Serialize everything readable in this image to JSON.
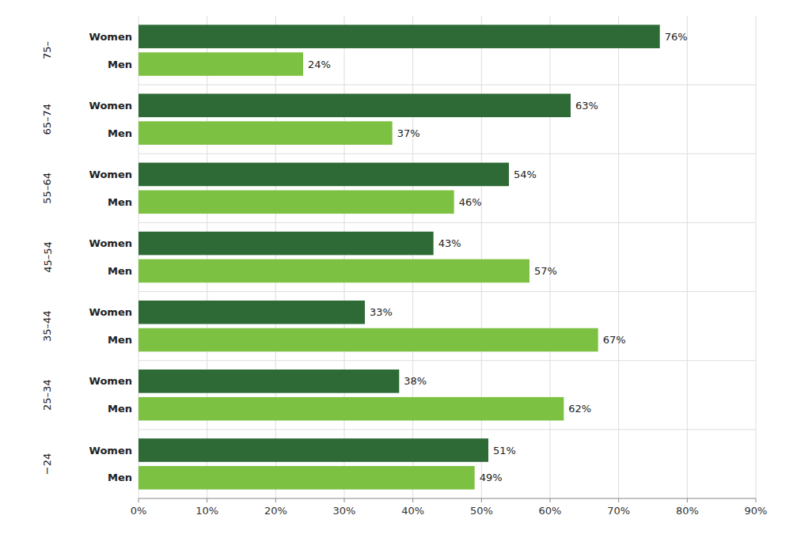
{
  "chart_data": {
    "type": "bar",
    "orientation": "horizontal",
    "categories": [
      "−24",
      "25–34",
      "35–44",
      "45–54",
      "55–64",
      "65–74",
      "75–"
    ],
    "series": [
      {
        "name": "Women",
        "color": "#2d6a35",
        "values": [
          51,
          38,
          33,
          43,
          54,
          63,
          76
        ],
        "value_labels": [
          "51%",
          "38%",
          "33%",
          "43%",
          "54%",
          "63%",
          "76%"
        ]
      },
      {
        "name": "Men",
        "color": "#7dc143",
        "values": [
          49,
          62,
          67,
          57,
          46,
          37,
          24
        ],
        "value_labels": [
          "49%",
          "62%",
          "67%",
          "57%",
          "46%",
          "37%",
          "24%"
        ]
      }
    ],
    "xlim": [
      0,
      90
    ],
    "xticks": [
      {
        "value": 0,
        "label": "0%"
      },
      {
        "value": 10,
        "label": "10%"
      },
      {
        "value": 20,
        "label": "20%"
      },
      {
        "value": 30,
        "label": "30%"
      },
      {
        "value": 40,
        "label": "40%"
      },
      {
        "value": 50,
        "label": "50%"
      },
      {
        "value": 60,
        "label": "60%"
      },
      {
        "value": 70,
        "label": "70%"
      },
      {
        "value": 80,
        "label": "80%"
      },
      {
        "value": 90,
        "label": "90%"
      }
    ],
    "grid": true,
    "data_labels": true
  }
}
